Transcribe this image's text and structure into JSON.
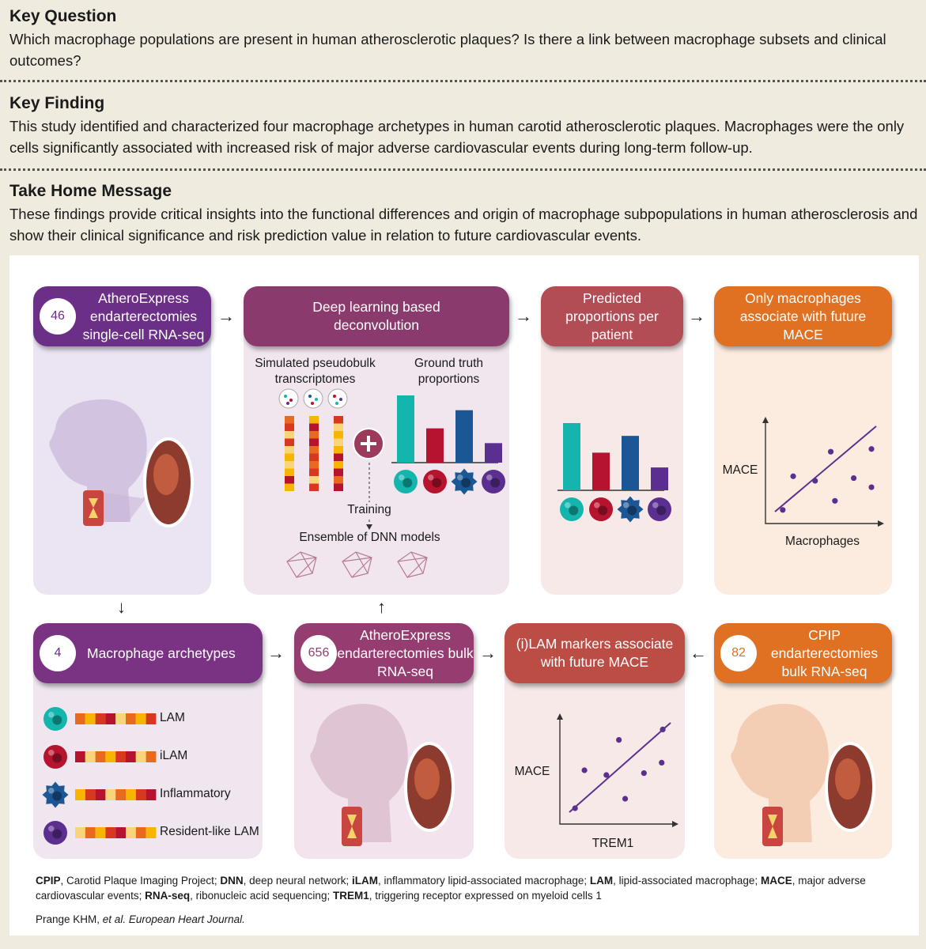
{
  "key_question": {
    "title": "Key Question",
    "text": "Which macrophage populations are present in human atherosclerotic plaques? Is there a link between macrophage subsets and clinical outcomes?"
  },
  "key_finding": {
    "title": "Key Finding",
    "text": "This study identified and characterized four macrophage archetypes in human carotid atherosclerotic plaques. Macrophages were the only cells significantly associated with increased risk of major adverse cardiovascular events during long-term follow-up."
  },
  "take_home": {
    "title": "Take Home Message",
    "text": "These findings provide critical insights into the functional differences and origin of macrophage subpopulations in human atherosclerosis and show their clinical significance and risk prediction value in relation to future cardiovascular events."
  },
  "boxes": {
    "scrnaseq": {
      "badge": "46",
      "text": "AtheroExpress endarterectomies single-cell RNA-seq"
    },
    "deconv": {
      "text": "Deep learning based deconvolution"
    },
    "predicted": {
      "text": "Predicted proportions per patient"
    },
    "only_macro": {
      "text": "Only macrophages associate with future MACE"
    },
    "archetypes": {
      "badge": "4",
      "text": "Macrophage archetypes"
    },
    "bulk": {
      "badge": "656",
      "text": "AtheroExpress endarterectomies bulk RNA-seq"
    },
    "ilam": {
      "text": "(i)LAM markers associate with future MACE"
    },
    "cpip": {
      "badge": "82",
      "text": "CPIP endarterectomies bulk RNA-seq"
    }
  },
  "labels": {
    "simulated": "Simulated pseudobulk transcriptomes",
    "ground_truth": "Ground truth proportions",
    "training": "Training",
    "ensemble": "Ensemble of DNN models",
    "mace_y1": "MACE",
    "macrophages_x": "Macrophages",
    "mace_y2": "MACE",
    "trem1_x": "TREM1"
  },
  "archetype_list": [
    "LAM",
    "iLAM",
    "Inflammatory",
    "Resident-like LAM"
  ],
  "chart_data": [
    {
      "type": "bar",
      "title": "Ground truth proportions",
      "categories": [
        "LAM",
        "iLAM",
        "Inflammatory",
        "Resident-like LAM"
      ],
      "values": [
        1.0,
        0.51,
        0.78,
        0.29
      ],
      "colors": [
        "#13b5ad",
        "#b5132e",
        "#1a5794",
        "#5b2f8f"
      ]
    },
    {
      "type": "bar",
      "title": "Predicted proportions per patient",
      "categories": [
        "LAM",
        "iLAM",
        "Inflammatory",
        "Resident-like LAM"
      ],
      "values": [
        1.0,
        0.56,
        0.81,
        0.34
      ],
      "colors": [
        "#13b5ad",
        "#b5132e",
        "#1a5794",
        "#5b2f8f"
      ]
    },
    {
      "type": "scatter",
      "xlabel": "Macrophages",
      "ylabel": "MACE",
      "points": [
        [
          0.12,
          0.08
        ],
        [
          0.22,
          0.45
        ],
        [
          0.43,
          0.4
        ],
        [
          0.58,
          0.72
        ],
        [
          0.62,
          0.18
        ],
        [
          0.8,
          0.43
        ],
        [
          0.97,
          0.75
        ],
        [
          0.97,
          0.33
        ]
      ]
    },
    {
      "type": "scatter",
      "xlabel": "TREM1",
      "ylabel": "MACE",
      "points": [
        [
          0.1,
          0.1
        ],
        [
          0.19,
          0.5
        ],
        [
          0.4,
          0.45
        ],
        [
          0.52,
          0.82
        ],
        [
          0.58,
          0.2
        ],
        [
          0.76,
          0.47
        ],
        [
          0.93,
          0.58
        ],
        [
          0.94,
          0.93
        ]
      ]
    }
  ],
  "colors": {
    "purple": "#6b2f87",
    "plum": "#8a3a6c",
    "mauve": "#a84466",
    "rust": "#bb4d45",
    "orange": "#e07122",
    "teal": "#13b5ad",
    "red": "#b5132e",
    "blue": "#1a5794",
    "violet": "#5b2f8f"
  },
  "footnote": {
    "line1_parts": [
      {
        "b": "CPIP"
      },
      {
        "t": ", Carotid Plaque Imaging Project; "
      },
      {
        "b": "DNN"
      },
      {
        "t": ", deep neural network; "
      },
      {
        "b": "iLAM"
      },
      {
        "t": ", inflammatory lipid-associated macrophage; "
      },
      {
        "b": "LAM"
      },
      {
        "t": ", lipid-associated macrophage; "
      },
      {
        "b": "MACE"
      },
      {
        "t": ", major adverse cardiovascular events; "
      },
      {
        "b": "RNA-seq"
      },
      {
        "t": ", ribonucleic acid sequencing; "
      },
      {
        "b": "TREM1"
      },
      {
        "t": ", triggering receptor expressed on myeloid cells 1"
      }
    ],
    "citation_authors": "Prange KHM, ",
    "citation_etal": "et al.",
    "citation_journal": " European Heart Journal."
  }
}
